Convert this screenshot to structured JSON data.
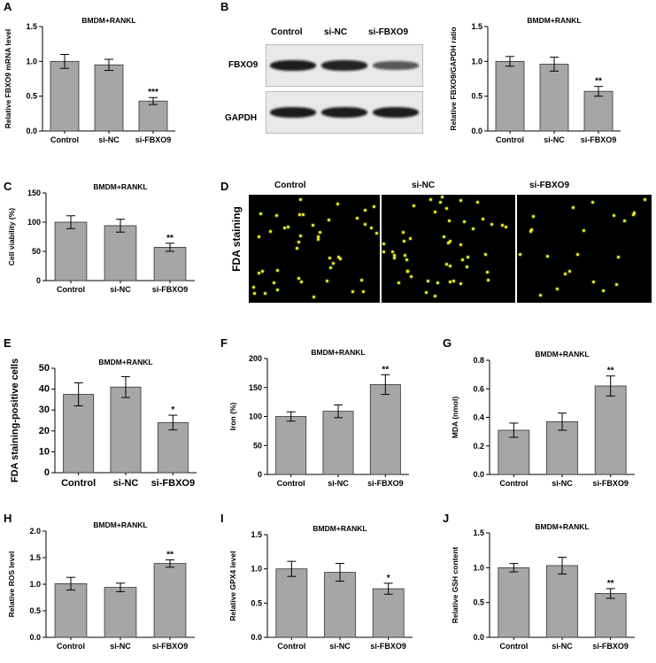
{
  "panel_letters": [
    "A",
    "B",
    "C",
    "D",
    "E",
    "F",
    "G",
    "H",
    "I",
    "J"
  ],
  "blot": {
    "lanes": [
      "Control",
      "si-NC",
      "si-FBXO9"
    ],
    "rows": [
      "FBXO9",
      "GAPDH"
    ],
    "fbxo9_band_intensity": [
      1.0,
      0.95,
      0.55
    ],
    "gapdh_band_intensity": [
      1.0,
      1.0,
      1.0
    ]
  },
  "fda_image": {
    "side_label": "FDA staining",
    "columns": [
      "Control",
      "si-NC",
      "si-FBXO9"
    ]
  },
  "colors": {
    "bar_fill": "#a6a6a6",
    "bar_stroke": "#333333",
    "cell": "#f4f11a"
  },
  "chart_data": [
    {
      "id": "A",
      "type": "bar",
      "title": "BMDM+RANKL",
      "ylabel": "Relative FBXO9 mRNA level",
      "categories": [
        "Control",
        "si-NC",
        "si-FBXO9"
      ],
      "values": [
        1.0,
        0.95,
        0.43
      ],
      "errors": [
        0.1,
        0.08,
        0.05
      ],
      "annotations": [
        "",
        "",
        "***"
      ],
      "ylim": [
        0,
        1.5
      ],
      "yticks": [
        "0.0",
        "0.5",
        "1.0",
        "1.5"
      ]
    },
    {
      "id": "B",
      "type": "bar",
      "title": "BMDM+RANKL",
      "ylabel": "Relative FBXO9/GAPDH ratio",
      "categories": [
        "Control",
        "si-NC",
        "si-FBXO9"
      ],
      "values": [
        1.0,
        0.96,
        0.57
      ],
      "errors": [
        0.07,
        0.1,
        0.07
      ],
      "annotations": [
        "",
        "",
        "**"
      ],
      "ylim": [
        0,
        1.5
      ],
      "yticks": [
        "0.0",
        "0.5",
        "1.0",
        "1.5"
      ]
    },
    {
      "id": "C",
      "type": "bar",
      "title": "BMDM+RANKL",
      "ylabel": "Cell viability (%)",
      "categories": [
        "Control",
        "si-NC",
        "si-FBXO9"
      ],
      "values": [
        100,
        94,
        57
      ],
      "errors": [
        11,
        11,
        7
      ],
      "annotations": [
        "",
        "",
        "**"
      ],
      "ylim": [
        0,
        150
      ],
      "yticks": [
        "0",
        "50",
        "100",
        "150"
      ]
    },
    {
      "id": "E",
      "type": "bar",
      "title": "BMDM+RANKL",
      "ylabel": "FDA staining-positive cells",
      "categories": [
        "Control",
        "si-NC",
        "si-FBXO9"
      ],
      "values": [
        37.5,
        41,
        24
      ],
      "errors": [
        5.5,
        5,
        3.5
      ],
      "annotations": [
        "",
        "",
        "*"
      ],
      "ylim": [
        0,
        50
      ],
      "yticks": [
        "0",
        "10",
        "20",
        "30",
        "40",
        "50"
      ]
    },
    {
      "id": "F",
      "type": "bar",
      "title": "BMDM+RANKL",
      "ylabel": "Iron (%)",
      "categories": [
        "Control",
        "si-NC",
        "si-FBXO9"
      ],
      "values": [
        100,
        109,
        155
      ],
      "errors": [
        8,
        11,
        17
      ],
      "annotations": [
        "",
        "",
        "**"
      ],
      "ylim": [
        0,
        200
      ],
      "yticks": [
        "0",
        "50",
        "100",
        "150",
        "200"
      ]
    },
    {
      "id": "G",
      "type": "bar",
      "title": "BMDM+RANKL",
      "ylabel": "MDA (nmol)",
      "categories": [
        "Control",
        "si-NC",
        "si-FBXO9"
      ],
      "values": [
        0.31,
        0.37,
        0.62
      ],
      "errors": [
        0.05,
        0.06,
        0.07
      ],
      "annotations": [
        "",
        "",
        "**"
      ],
      "ylim": [
        0,
        0.8
      ],
      "yticks": [
        "0.0",
        "0.2",
        "0.4",
        "0.6",
        "0.8"
      ]
    },
    {
      "id": "H",
      "type": "bar",
      "title": "BMDM+RANKL",
      "ylabel": "Relative ROS level",
      "categories": [
        "Control",
        "si-NC",
        "si-FBXO9"
      ],
      "values": [
        1.01,
        0.94,
        1.39
      ],
      "errors": [
        0.12,
        0.08,
        0.07
      ],
      "annotations": [
        "",
        "",
        "**"
      ],
      "ylim": [
        0,
        2.0
      ],
      "yticks": [
        "0.0",
        "0.5",
        "1.0",
        "1.5",
        "2.0"
      ]
    },
    {
      "id": "I",
      "type": "bar",
      "title": "BMDM+RANKL",
      "ylabel": "Relative GPX4 level",
      "categories": [
        "Control",
        "si-NC",
        "si-FBXO9"
      ],
      "values": [
        1.0,
        0.95,
        0.71
      ],
      "errors": [
        0.11,
        0.13,
        0.08
      ],
      "annotations": [
        "",
        "",
        "*"
      ],
      "ylim": [
        0,
        1.5
      ],
      "yticks": [
        "0.0",
        "0.5",
        "1.0",
        "1.5"
      ]
    },
    {
      "id": "J",
      "type": "bar",
      "title": "BMDM+RANKL",
      "ylabel": "Relative GSH content",
      "categories": [
        "Control",
        "si-NC",
        "si-FBXO9"
      ],
      "values": [
        1.0,
        1.03,
        0.63
      ],
      "errors": [
        0.06,
        0.12,
        0.07
      ],
      "annotations": [
        "",
        "",
        "**"
      ],
      "ylim": [
        0,
        1.5
      ],
      "yticks": [
        "0.0",
        "0.5",
        "1.0",
        "1.5"
      ]
    }
  ]
}
